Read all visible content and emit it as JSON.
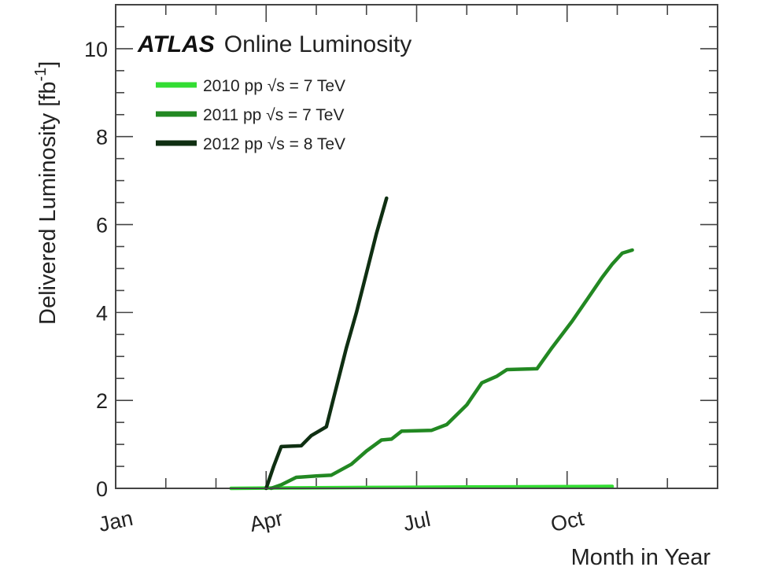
{
  "chart_data": {
    "type": "line",
    "title_bold": "ATLAS",
    "title_rest": "Online Luminosity",
    "xlabel": "Month in Year",
    "ylabel": "Delivered Luminosity [fb",
    "ylabel_sup": "-1",
    "ylabel_close": "]",
    "xlim": [
      0,
      12
    ],
    "ylim": [
      0,
      11
    ],
    "x_ticks": [
      {
        "month": 0,
        "label": "Jan"
      },
      {
        "month": 3,
        "label": "Apr"
      },
      {
        "month": 6,
        "label": "Jul"
      },
      {
        "month": 9,
        "label": "Oct"
      }
    ],
    "y_ticks": [
      {
        "value": 0,
        "label": "0"
      },
      {
        "value": 2,
        "label": "2"
      },
      {
        "value": 4,
        "label": "4"
      },
      {
        "value": 6,
        "label": "6"
      },
      {
        "value": 8,
        "label": "8"
      },
      {
        "value": 10,
        "label": "10"
      }
    ],
    "legend_position": "top-left",
    "series": [
      {
        "name": "2010 pp √s = 7 TeV",
        "color": "#33dd33",
        "points": [
          [
            2.3,
            0
          ],
          [
            3.5,
            0.01
          ],
          [
            5,
            0.02
          ],
          [
            7,
            0.03
          ],
          [
            9.9,
            0.045
          ]
        ]
      },
      {
        "name": "2011 pp √s = 7 TeV",
        "color": "#228822",
        "points": [
          [
            3.1,
            0
          ],
          [
            3.3,
            0.08
          ],
          [
            3.6,
            0.25
          ],
          [
            4.0,
            0.28
          ],
          [
            4.3,
            0.3
          ],
          [
            4.7,
            0.55
          ],
          [
            5.0,
            0.85
          ],
          [
            5.3,
            1.1
          ],
          [
            5.5,
            1.12
          ],
          [
            5.7,
            1.3
          ],
          [
            6.3,
            1.32
          ],
          [
            6.6,
            1.45
          ],
          [
            7.0,
            1.9
          ],
          [
            7.3,
            2.4
          ],
          [
            7.6,
            2.55
          ],
          [
            7.8,
            2.7
          ],
          [
            8.4,
            2.72
          ],
          [
            8.7,
            3.2
          ],
          [
            9.1,
            3.8
          ],
          [
            9.4,
            4.3
          ],
          [
            9.7,
            4.8
          ],
          [
            9.9,
            5.1
          ],
          [
            10.1,
            5.35
          ],
          [
            10.3,
            5.42
          ]
        ]
      },
      {
        "name": "2012 pp √s = 8 TeV",
        "color": "#0f2f12",
        "points": [
          [
            3.0,
            0
          ],
          [
            3.15,
            0.5
          ],
          [
            3.3,
            0.95
          ],
          [
            3.7,
            0.97
          ],
          [
            3.9,
            1.2
          ],
          [
            4.2,
            1.4
          ],
          [
            4.4,
            2.3
          ],
          [
            4.6,
            3.2
          ],
          [
            4.8,
            4.0
          ],
          [
            5.0,
            4.9
          ],
          [
            5.2,
            5.8
          ],
          [
            5.4,
            6.6
          ]
        ]
      }
    ]
  }
}
